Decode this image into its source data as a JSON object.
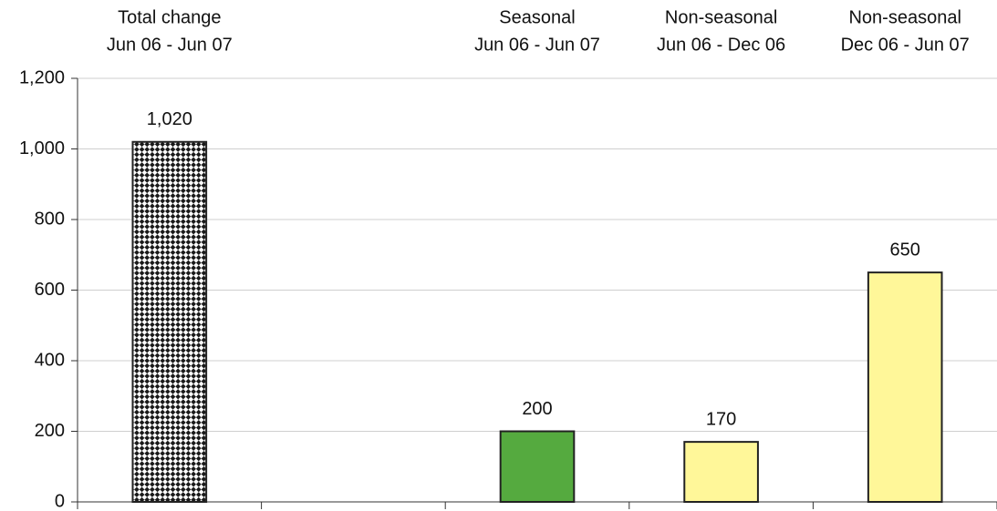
{
  "chart_data": {
    "type": "bar",
    "categories": [
      [
        "Total change",
        "Jun 06 - Jun 07"
      ],
      null,
      [
        "Seasonal",
        "Jun 06 - Jun 07"
      ],
      [
        "Non-seasonal",
        "Jun 06 - Dec 06"
      ],
      [
        "Non-seasonal",
        "Dec 06 - Jun 07"
      ]
    ],
    "values": [
      1020,
      null,
      200,
      170,
      650
    ],
    "value_labels": [
      "1,020",
      null,
      "200",
      "170",
      "650"
    ],
    "fills": [
      "checker",
      null,
      "#55aa3f",
      "#fff799",
      "#fff799"
    ],
    "ylim": [
      0,
      1200
    ],
    "yticks": [
      0,
      200,
      400,
      600,
      800,
      {
        "value": 1000,
        "label": "1,000"
      },
      {
        "value": 1200,
        "label": "1,200"
      }
    ],
    "grid": true
  }
}
